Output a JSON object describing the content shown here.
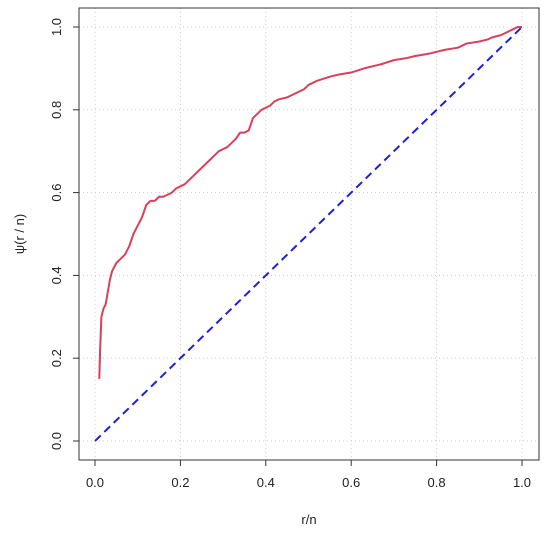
{
  "chart_data": {
    "type": "line",
    "xlabel": "r/n",
    "ylabel": "ψ(r / n)",
    "xlim": [
      0.0,
      1.0
    ],
    "ylim": [
      0.0,
      1.0
    ],
    "xticks": [
      "0.0",
      "0.2",
      "0.4",
      "0.6",
      "0.8",
      "1.0"
    ],
    "yticks": [
      "0.0",
      "0.2",
      "0.4",
      "0.6",
      "0.8",
      "1.0"
    ],
    "grid": true,
    "colors": {
      "curve": "#d9405a",
      "diagonal": "#1f1fd6",
      "grid": "#cccccc",
      "axis": "#333333"
    },
    "series": [
      {
        "style": "solid",
        "color": "#d9405a",
        "x": [
          0.01,
          0.012,
          0.015,
          0.02,
          0.025,
          0.03,
          0.035,
          0.04,
          0.045,
          0.05,
          0.06,
          0.07,
          0.08,
          0.09,
          0.1,
          0.11,
          0.12,
          0.13,
          0.14,
          0.15,
          0.16,
          0.18,
          0.19,
          0.2,
          0.21,
          0.22,
          0.23,
          0.24,
          0.25,
          0.26,
          0.27,
          0.28,
          0.29,
          0.3,
          0.31,
          0.32,
          0.33,
          0.34,
          0.35,
          0.36,
          0.37,
          0.38,
          0.39,
          0.4,
          0.41,
          0.42,
          0.43,
          0.45,
          0.47,
          0.49,
          0.5,
          0.52,
          0.55,
          0.57,
          0.6,
          0.63,
          0.65,
          0.67,
          0.7,
          0.73,
          0.75,
          0.78,
          0.8,
          0.82,
          0.85,
          0.87,
          0.9,
          0.92,
          0.93,
          0.95,
          0.97,
          0.98,
          0.99,
          1.0
        ],
        "y": [
          0.15,
          0.22,
          0.3,
          0.32,
          0.33,
          0.36,
          0.39,
          0.41,
          0.42,
          0.43,
          0.44,
          0.45,
          0.47,
          0.5,
          0.52,
          0.54,
          0.57,
          0.58,
          0.58,
          0.59,
          0.59,
          0.6,
          0.61,
          0.615,
          0.62,
          0.63,
          0.64,
          0.65,
          0.66,
          0.67,
          0.68,
          0.69,
          0.7,
          0.705,
          0.71,
          0.72,
          0.73,
          0.745,
          0.745,
          0.75,
          0.78,
          0.79,
          0.8,
          0.805,
          0.81,
          0.82,
          0.825,
          0.83,
          0.84,
          0.85,
          0.86,
          0.87,
          0.88,
          0.885,
          0.89,
          0.9,
          0.905,
          0.91,
          0.92,
          0.925,
          0.93,
          0.935,
          0.94,
          0.945,
          0.95,
          0.96,
          0.965,
          0.97,
          0.975,
          0.98,
          0.99,
          0.995,
          1.0,
          1.0
        ]
      },
      {
        "style": "dashed",
        "color": "#1f1fd6",
        "x": [
          0.0,
          1.0
        ],
        "y": [
          0.0,
          1.0
        ]
      }
    ]
  }
}
